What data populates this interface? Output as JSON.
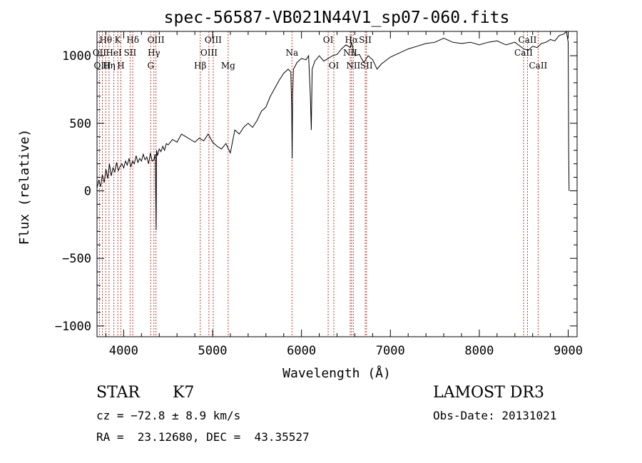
{
  "chart_data": {
    "type": "line",
    "title": "spec-56587-VB021N44V1_sp07-060.fits",
    "xlabel": "Wavelength (Å)",
    "ylabel": "Flux (relative)",
    "xlim": [
      3700,
      9100
    ],
    "ylim": [
      -1080,
      1180
    ],
    "x_ticks": [
      4000,
      5000,
      6000,
      7000,
      8000,
      9000
    ],
    "y_ticks": [
      -1000,
      -500,
      0,
      500,
      1000
    ],
    "y_tick_labels": [
      "−1000",
      "−500",
      "0",
      "500",
      "1000"
    ],
    "grid": false,
    "line_color": "#000000",
    "marker_color": "#c0392b",
    "series": [
      {
        "x": [
          3700,
          3720,
          3740,
          3760,
          3780,
          3800,
          3820,
          3840,
          3860,
          3880,
          3900,
          3920,
          3940,
          3960,
          3980,
          4000,
          4020,
          4040,
          4060,
          4080,
          4100,
          4120,
          4140,
          4160,
          4180,
          4200,
          4220,
          4240,
          4260,
          4280,
          4300,
          4320,
          4340,
          4355,
          4365,
          4370,
          4380,
          4400,
          4420,
          4440,
          4460,
          4480,
          4500,
          4550,
          4600,
          4650,
          4700,
          4750,
          4800,
          4850,
          4900,
          4950,
          5000,
          5050,
          5100,
          5150,
          5200,
          5250,
          5300,
          5350,
          5400,
          5450,
          5500,
          5550,
          5600,
          5650,
          5700,
          5750,
          5800,
          5850,
          5880,
          5890,
          5895,
          5900,
          5910,
          5950,
          6000,
          6050,
          6080,
          6100,
          6110,
          6120,
          6150,
          6200,
          6250,
          6300,
          6350,
          6400,
          6450,
          6500,
          6550,
          6563,
          6600,
          6650,
          6700,
          6750,
          6800,
          6850,
          6900,
          7000,
          7100,
          7200,
          7300,
          7400,
          7500,
          7600,
          7700,
          7800,
          7900,
          8000,
          8100,
          8200,
          8300,
          8400,
          8500,
          8550,
          8600,
          8650,
          8700,
          8750,
          8800,
          8850,
          8900,
          8950,
          8980,
          9000,
          9005,
          9010
        ],
        "y": [
          20,
          80,
          30,
          120,
          60,
          160,
          90,
          200,
          110,
          170,
          140,
          210,
          150,
          180,
          200,
          170,
          220,
          190,
          240,
          180,
          220,
          200,
          260,
          210,
          240,
          220,
          270,
          230,
          250,
          200,
          280,
          220,
          230,
          270,
          -290,
          300,
          260,
          310,
          290,
          330,
          300,
          350,
          340,
          380,
          360,
          420,
          400,
          380,
          360,
          390,
          370,
          420,
          360,
          330,
          310,
          350,
          280,
          450,
          420,
          470,
          500,
          470,
          520,
          590,
          620,
          700,
          760,
          820,
          870,
          900,
          880,
          620,
          240,
          700,
          900,
          950,
          980,
          970,
          1000,
          700,
          450,
          900,
          960,
          1000,
          960,
          980,
          1000,
          1010,
          1050,
          1080,
          1060,
          1100,
          1000,
          1010,
          950,
          1000,
          970,
          900,
          940,
          990,
          1020,
          1050,
          1070,
          1090,
          1100,
          1130,
          1100,
          1090,
          1100,
          1080,
          1100,
          1110,
          1080,
          1100,
          1050,
          1040,
          1070,
          1060,
          1090,
          1100,
          1120,
          1110,
          1150,
          1160,
          1180,
          1100,
          300,
          0
        ]
      }
    ],
    "line_markers": [
      {
        "label": "Hθ",
        "x": 3798,
        "row": 1
      },
      {
        "label": "OII",
        "x": 3727,
        "row": 2
      },
      {
        "label": "OIII",
        "x": 3760,
        "row": 3
      },
      {
        "label": "K",
        "x": 3934,
        "row": 1
      },
      {
        "label": "HeI",
        "x": 3889,
        "row": 2
      },
      {
        "label": "Hη",
        "x": 3835,
        "row": 3
      },
      {
        "label": "H",
        "x": 3969,
        "row": 3
      },
      {
        "label": "SII",
        "x": 4072,
        "row": 2
      },
      {
        "label": "Hδ",
        "x": 4102,
        "row": 1
      },
      {
        "label": "OIII",
        "x": 4363,
        "row": 1
      },
      {
        "label": "Hγ",
        "x": 4340,
        "row": 2
      },
      {
        "label": "G",
        "x": 4304,
        "row": 3
      },
      {
        "label": "OIII",
        "x": 5007,
        "row": 1
      },
      {
        "label": "OIII",
        "x": 4959,
        "row": 2
      },
      {
        "label": "Hβ",
        "x": 4861,
        "row": 3
      },
      {
        "label": "Mg",
        "x": 5175,
        "row": 3
      },
      {
        "label": "Na",
        "x": 5893,
        "row": 2
      },
      {
        "label": "OI",
        "x": 6300,
        "row": 1
      },
      {
        "label": "OI",
        "x": 6364,
        "row": 3
      },
      {
        "label": "Hα",
        "x": 6563,
        "row": 1
      },
      {
        "label": "NII",
        "x": 6548,
        "row": 2
      },
      {
        "label": "NII",
        "x": 6583,
        "row": 3
      },
      {
        "label": "SII",
        "x": 6717,
        "row": 1
      },
      {
        "label": "SII",
        "x": 6731,
        "row": 3
      },
      {
        "label": "CaII",
        "x": 8542,
        "row": 1
      },
      {
        "label": "CaII",
        "x": 8498,
        "row": 2
      },
      {
        "label": "CaII",
        "x": 8662,
        "row": 3
      }
    ]
  },
  "info": {
    "object_type": "STAR",
    "subclass": "K7",
    "survey": "LAMOST DR3",
    "cz": "cz = −72.8 ± 8.9 km/s",
    "obs_date": "Obs-Date: 20131021",
    "coords": "RA =  23.12680, DEC =  43.35527"
  }
}
